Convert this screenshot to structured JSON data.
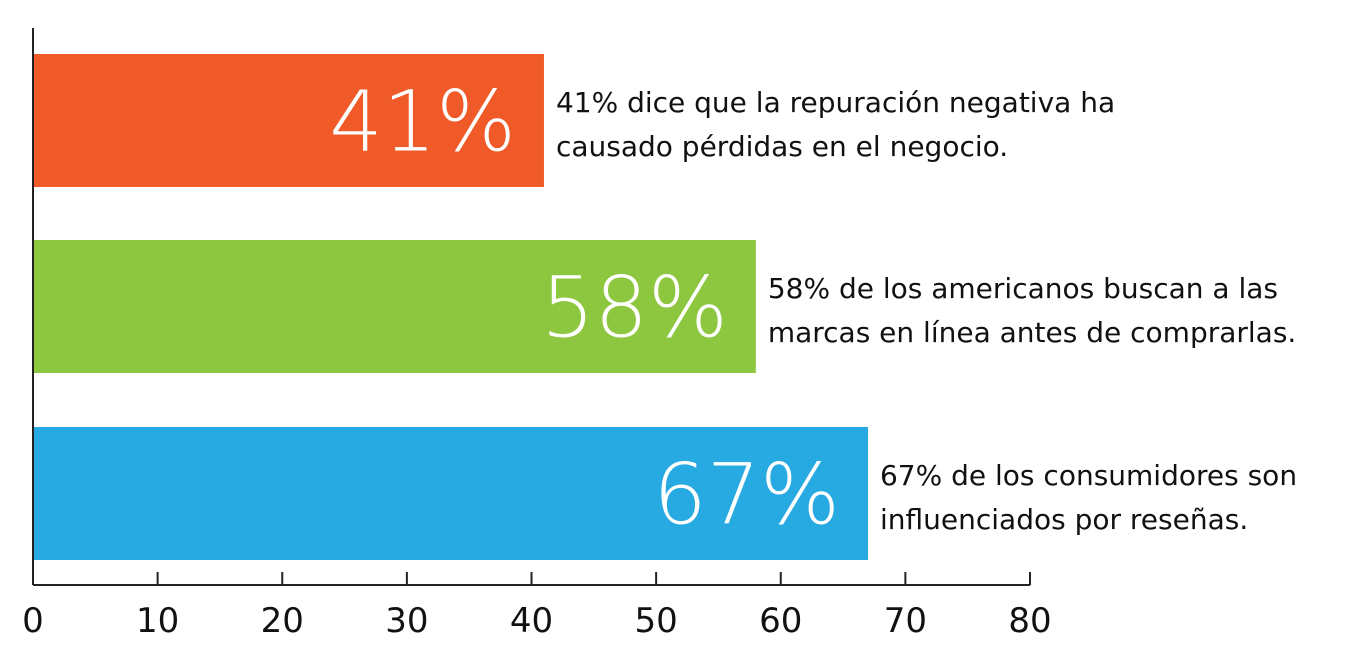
{
  "chart_data": {
    "type": "bar",
    "orientation": "horizontal",
    "title": "",
    "xlabel": "",
    "ylabel": "",
    "xlim": [
      0,
      80
    ],
    "grid": false,
    "x_ticks": [
      0,
      10,
      20,
      30,
      40,
      50,
      60,
      70,
      80
    ],
    "x_tick_labels": [
      "0",
      "10",
      "20",
      "30",
      "40",
      "50",
      "60",
      "70",
      "80"
    ],
    "bars": [
      {
        "value": 41,
        "label": "41%",
        "color": "#f05a28",
        "annotation": [
          "41% dice que la repuración negativa ha",
          "causado pérdidas en el negocio."
        ]
      },
      {
        "value": 58,
        "label": "58%",
        "color": "#8dc63f",
        "annotation": [
          "58% de los americanos buscan a las",
          "marcas en línea antes de comprarlas."
        ]
      },
      {
        "value": 67,
        "label": "67%",
        "color": "#27aae1",
        "annotation": [
          "67% de los consumidores son",
          "influenciados por reseñas."
        ]
      }
    ]
  }
}
